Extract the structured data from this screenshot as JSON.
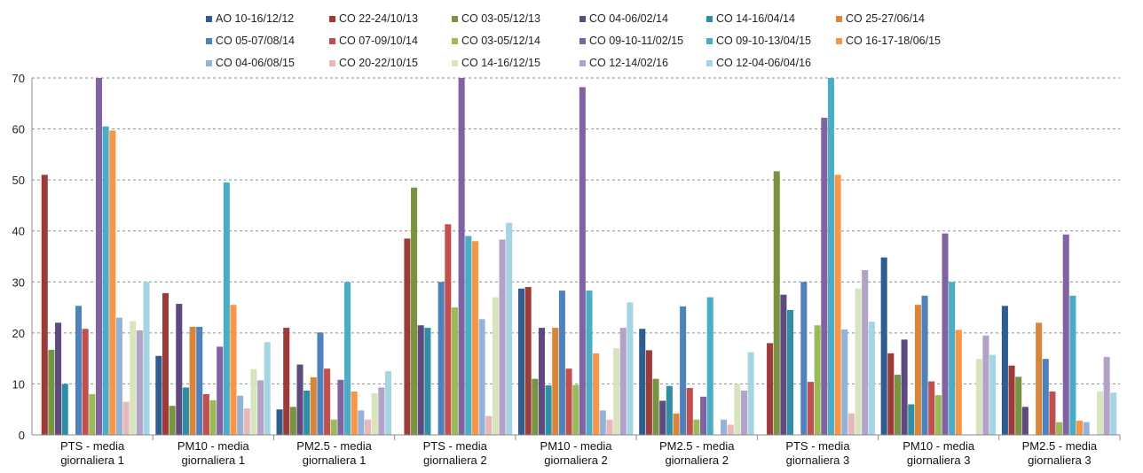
{
  "chart_data": {
    "type": "bar",
    "title": "",
    "xlabel": "",
    "ylabel": "",
    "ylim": [
      0,
      70
    ],
    "yticks": [
      0,
      10,
      20,
      30,
      40,
      50,
      60,
      70
    ],
    "grid": true,
    "legend_position": "top",
    "categories": [
      [
        "PTS - media",
        "giornaliera 1"
      ],
      [
        "PM10 - media",
        "giornaliera 1"
      ],
      [
        "PM2.5 - media",
        "giornaliera 1"
      ],
      [
        "PTS - media",
        "giornaliera 2"
      ],
      [
        "PM10 - media",
        "giornaliera 2"
      ],
      [
        "PM2.5 - media",
        "giornaliera 2"
      ],
      [
        "PTS - media",
        "giornaliera 3"
      ],
      [
        "PM10 - media",
        "giornaliera 3"
      ],
      [
        "PM2.5 - media",
        "giornaliera 3"
      ]
    ],
    "series": [
      {
        "name": "AO 10-16/12/12",
        "color": "#2E5D8E",
        "values": [
          0,
          15.5,
          5,
          0,
          28.7,
          20.8,
          0,
          34.8,
          25.3
        ]
      },
      {
        "name": "CO 22-24/10/13",
        "color": "#9C3B38",
        "values": [
          51,
          27.8,
          21,
          38.5,
          29,
          16.6,
          18,
          16,
          13.6
        ]
      },
      {
        "name": "CO 03-05/12/13",
        "color": "#789440",
        "values": [
          16.7,
          5.7,
          5.5,
          48.5,
          11,
          11,
          51.7,
          11.8,
          11.4
        ]
      },
      {
        "name": "CO 04-06/02/14",
        "color": "#5E4A7E",
        "values": [
          22,
          25.7,
          13.8,
          21.5,
          21,
          6.7,
          27.5,
          18.7,
          5.5
        ]
      },
      {
        "name": "CO 14-16/04/14",
        "color": "#2E8FA4",
        "values": [
          10,
          9.3,
          8.7,
          21,
          9.7,
          9.6,
          24.5,
          6,
          0
        ]
      },
      {
        "name": "CO 25-27/06/14",
        "color": "#D9853A",
        "values": [
          0,
          21.2,
          11.3,
          0,
          21,
          4.2,
          0,
          25.5,
          22
        ]
      },
      {
        "name": "CO 05-07/08/14",
        "color": "#4F81BD",
        "values": [
          25.3,
          21.2,
          20.1,
          30,
          28.3,
          25.2,
          30,
          27.3,
          14.9
        ]
      },
      {
        "name": "CO 07-09/10/14",
        "color": "#C0504D",
        "values": [
          20.8,
          8,
          13,
          41.3,
          13,
          9.2,
          10.4,
          10.5,
          8.5
        ]
      },
      {
        "name": "CO 03-05/12/14",
        "color": "#9BBB59",
        "values": [
          8,
          6.8,
          3,
          25,
          9.8,
          3,
          21.5,
          7.8,
          2.5
        ]
      },
      {
        "name": "CO 09-10-11/02/15",
        "color": "#8064A2",
        "values": [
          70,
          17.3,
          10.8,
          70,
          68.2,
          7.5,
          62.2,
          39.5,
          39.3
        ]
      },
      {
        "name": "CO 09-10-13/04/15",
        "color": "#4BACC6",
        "values": [
          60.5,
          49.5,
          30,
          39,
          28.3,
          27,
          70,
          30,
          27.3
        ]
      },
      {
        "name": "CO 16-17-18/06/15",
        "color": "#F79646",
        "values": [
          59.7,
          25.5,
          8.5,
          38,
          16,
          0,
          51,
          20.6,
          2.8
        ]
      },
      {
        "name": "CO 04-06/08/15",
        "color": "#95B3D7",
        "values": [
          23,
          7.7,
          4.8,
          22.7,
          4.8,
          3,
          20.7,
          0,
          2.5
        ]
      },
      {
        "name": "CO 20-22/10/15",
        "color": "#E6B9B8",
        "values": [
          6.5,
          5.2,
          3,
          3.7,
          3,
          2,
          4.2,
          0,
          0
        ]
      },
      {
        "name": "CO 14-16/12/15",
        "color": "#D7E4BD",
        "values": [
          22.3,
          12.9,
          8.2,
          27,
          17,
          10,
          28.7,
          14.9,
          8.5
        ]
      },
      {
        "name": "CO 12-14/02/16",
        "color": "#B3A2C7",
        "values": [
          20.5,
          10.7,
          9.3,
          38.3,
          21,
          8.7,
          32.3,
          19.5,
          15.3
        ]
      },
      {
        "name": "CO 12-04-06/04/16",
        "color": "#A5D5E2",
        "values": [
          30,
          18.2,
          12.5,
          41.6,
          26,
          16.2,
          22.2,
          15.7,
          8.3
        ]
      }
    ]
  }
}
